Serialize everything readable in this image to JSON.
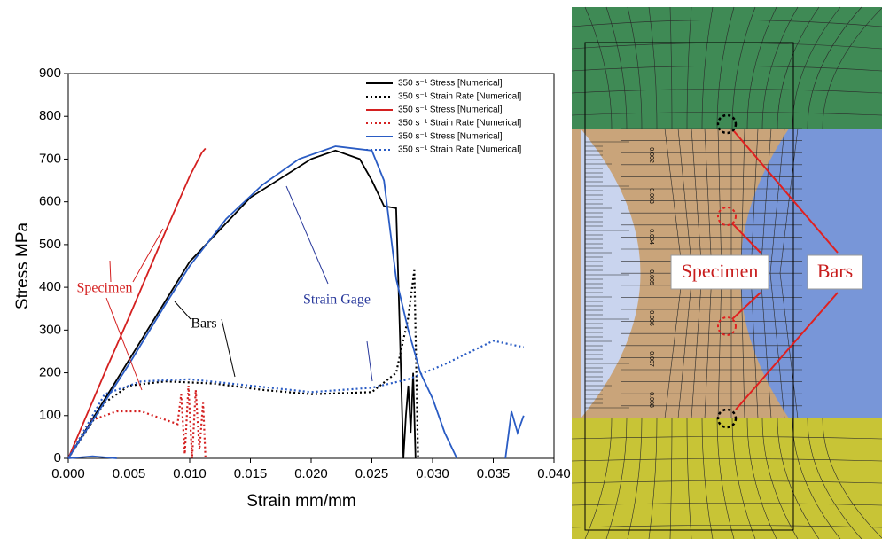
{
  "chart_data": {
    "type": "line",
    "xlabel": "Strain mm/mm",
    "ylabel": "Stress MPa",
    "xlim": [
      0,
      0.04
    ],
    "ylim": [
      0,
      900
    ],
    "xticks": [
      {
        "value": 0,
        "label": "0.000"
      },
      {
        "value": 0.005,
        "label": "0.005"
      },
      {
        "value": 0.01,
        "label": "0.010"
      },
      {
        "value": 0.015,
        "label": "0.015"
      },
      {
        "value": 0.02,
        "label": "0.020"
      },
      {
        "value": 0.025,
        "label": "0.025"
      },
      {
        "value": 0.03,
        "label": "0.030"
      },
      {
        "value": 0.035,
        "label": "0.035"
      },
      {
        "value": 0.04,
        "label": "0.040"
      }
    ],
    "yticks": [
      0,
      100,
      200,
      300,
      400,
      500,
      600,
      700,
      800,
      900
    ],
    "legend": "upper right",
    "series": [
      {
        "name": "350 s⁻¹ Stress [Numerical]",
        "color": "#000000",
        "style": "solid",
        "x": [
          0,
          0.005,
          0.01,
          0.015,
          0.02,
          0.022,
          0.024,
          0.025,
          0.026,
          0.027,
          0.0273,
          0.0276,
          0.0278,
          0.028,
          0.0282,
          0.0284,
          0.0286
        ],
        "values": [
          0,
          230,
          460,
          610,
          700,
          720,
          700,
          650,
          590,
          585,
          300,
          0,
          100,
          170,
          60,
          200,
          0
        ]
      },
      {
        "name": "350 s⁻¹ Strain Rate [Numerical]",
        "color": "#000000",
        "style": "dotted",
        "x": [
          0,
          0.003,
          0.005,
          0.008,
          0.012,
          0.016,
          0.02,
          0.025,
          0.027,
          0.028,
          0.0285,
          0.0288
        ],
        "values": [
          0,
          130,
          170,
          180,
          175,
          160,
          150,
          155,
          200,
          330,
          440,
          0
        ]
      },
      {
        "name": "350 s⁻¹ Stress [Numerical]",
        "color": "#d42020",
        "style": "solid",
        "x": [
          0,
          0.003,
          0.005,
          0.008,
          0.01,
          0.011,
          0.0113
        ],
        "values": [
          0,
          200,
          330,
          530,
          660,
          715,
          725
        ]
      },
      {
        "name": "350 s⁻¹ Strain Rate [Numerical]",
        "color": "#d42020",
        "style": "dotted",
        "x": [
          0,
          0.002,
          0.004,
          0.006,
          0.008,
          0.009,
          0.0093,
          0.0096,
          0.0099,
          0.0102,
          0.0105,
          0.0108,
          0.0111,
          0.0113
        ],
        "values": [
          0,
          90,
          110,
          110,
          90,
          80,
          150,
          10,
          170,
          0,
          160,
          20,
          130,
          0
        ]
      },
      {
        "name": "350 s⁻¹ Stress [Numerical]",
        "color": "#2a5cc4",
        "style": "solid",
        "x": [
          0,
          0.002,
          0.004,
          null,
          0,
          0.005,
          0.008,
          0.01,
          0.013,
          0.016,
          0.019,
          0.022,
          0.025,
          0.026,
          0.027,
          0.028,
          0.029,
          0.03,
          0.031,
          0.032,
          null,
          0.036,
          0.0365,
          0.037,
          0.0375
        ],
        "values": [
          0,
          5,
          0,
          null,
          0,
          220,
          360,
          450,
          560,
          640,
          700,
          730,
          720,
          650,
          420,
          300,
          200,
          140,
          60,
          0,
          null,
          0,
          110,
          60,
          100
        ]
      },
      {
        "name": "350 s⁻¹ Strain Rate [Numerical]",
        "color": "#2a5cc4",
        "style": "dotted",
        "x": [
          0,
          0.003,
          0.006,
          0.01,
          0.015,
          0.02,
          0.025,
          0.028,
          0.031,
          0.035,
          0.0375
        ],
        "values": [
          0,
          150,
          180,
          185,
          170,
          155,
          165,
          185,
          220,
          275,
          260
        ]
      }
    ],
    "annotations": [
      {
        "text": "Specimen",
        "color": "#d42020"
      },
      {
        "text": "Bars",
        "color": "#000000"
      },
      {
        "text": "Strain Gage",
        "color": "#2a3a9c"
      }
    ]
  },
  "mesh_image": {
    "labels": [
      "Specimen",
      "Bars"
    ],
    "ruler_labels": [
      "0.002",
      "0.003",
      "0.004",
      "0.005",
      "0.006",
      "0.007",
      "0.008"
    ]
  }
}
